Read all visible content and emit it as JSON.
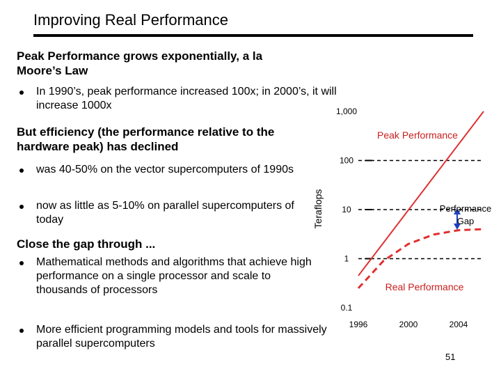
{
  "slide": {
    "title": "Improving Real Performance",
    "page_number": "51",
    "items": [
      {
        "type": "heading",
        "text": "Peak Performance grows exponentially, a la Moore’s Law"
      },
      {
        "type": "bullet",
        "text": "In 1990’s, peak performance increased 100x; in 2000’s, it will increase 1000x"
      },
      {
        "type": "heading",
        "text": "But efficiency (the performance relative to the hardware peak) has declined"
      },
      {
        "type": "bullet",
        "text": "was 40-50% on the vector supercomputers of 1990s"
      },
      {
        "type": "bullet",
        "text": "now as little as 5-10% on parallel supercomputers of today"
      },
      {
        "type": "heading",
        "text": "Close the gap through ..."
      },
      {
        "type": "bullet",
        "text": "Mathematical methods and algorithms that achieve high performance on a single processor and scale to thousands of processors"
      },
      {
        "type": "bullet",
        "text": "More efficient programming models and tools for massively parallel supercomputers"
      }
    ]
  },
  "chart_data": {
    "type": "line",
    "y_scale": "log",
    "ylabel": "Teraflops",
    "yticks": [
      "1,000",
      "100",
      "10",
      "1",
      "0.1"
    ],
    "ytick_values": [
      1000,
      100,
      10,
      1,
      0.1
    ],
    "ylim": [
      0.1,
      1000
    ],
    "xticks": [
      "1996",
      "2000",
      "2004"
    ],
    "xtick_values": [
      1996,
      2000,
      2004
    ],
    "xlim": [
      1996,
      2006
    ],
    "gridlines": "dashed at 1, 10, 100",
    "series": [
      {
        "name": "Peak Performance",
        "color": "#e03030",
        "style": "solid",
        "x": [
          1996,
          2006
        ],
        "y": [
          0.45,
          1000
        ]
      },
      {
        "name": "Real Performance",
        "color": "#e03030",
        "style": "dashed",
        "x": [
          1996,
          1998,
          2000,
          2002,
          2004,
          2006
        ],
        "y": [
          0.25,
          0.9,
          2.0,
          3.1,
          3.8,
          4.0
        ]
      }
    ],
    "annotations": [
      {
        "text": "Performance Gap",
        "type": "double-arrow",
        "x": 2004,
        "y_from": 10,
        "y_to": 4.0,
        "color": "#1f3fbf"
      }
    ],
    "labels": {
      "peak": "Peak Performance",
      "real": "Real Performance",
      "gap_line1": "Performance",
      "gap_line2": "Gap"
    }
  }
}
